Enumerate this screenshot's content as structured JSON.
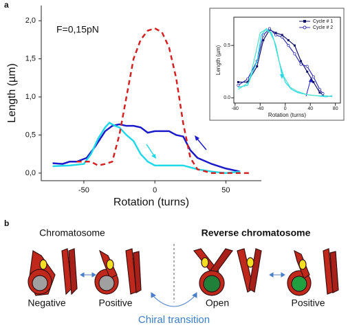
{
  "panel_labels": [
    "a",
    "b"
  ],
  "chart_data": [
    {
      "type": "line",
      "xlabel": "Rotation (turns)",
      "ylabel": "Length (µm)",
      "annotation": "F=0,15pN",
      "xlim": [
        -80,
        75
      ],
      "xticks": [
        -50,
        0,
        50
      ],
      "ylim": [
        -0.1,
        2.2
      ],
      "yticks": [
        {
          "value": 0,
          "label": "0,0"
        },
        {
          "value": 0.5,
          "label": "0,5"
        },
        {
          "value": 1,
          "label": "1,0"
        },
        {
          "value": 1.5,
          "label": "1,5"
        },
        {
          "value": 2,
          "label": "2,0"
        }
      ],
      "series": [
        {
          "color": "#1a1ac8",
          "style": "solid",
          "x": [
            -72,
            -65,
            -60,
            -55,
            -48,
            -42,
            -35,
            -30,
            -25,
            -20,
            -15,
            -10,
            -5,
            0,
            5,
            10,
            15,
            20,
            25,
            30,
            40,
            50,
            60
          ],
          "values": [
            0.13,
            0.12,
            0.15,
            0.15,
            0.2,
            0.35,
            0.55,
            0.62,
            0.64,
            0.62,
            0.62,
            0.6,
            0.53,
            0.55,
            0.55,
            0.55,
            0.5,
            0.48,
            0.3,
            0.2,
            0.12,
            0.06,
            0.02
          ]
        },
        {
          "color": "#20d8e8",
          "style": "solid",
          "x": [
            -72,
            -60,
            -50,
            -45,
            -40,
            -35,
            -32,
            -28,
            -25,
            -20,
            -15,
            -10,
            -5,
            0,
            10,
            20,
            30,
            40,
            50,
            60
          ],
          "values": [
            0.09,
            0.1,
            0.12,
            0.25,
            0.45,
            0.6,
            0.66,
            0.62,
            0.6,
            0.5,
            0.42,
            0.25,
            0.15,
            0.1,
            0.1,
            0.1,
            0.05,
            0.02,
            0,
            0.02
          ]
        },
        {
          "color": "#d42020",
          "style": "dashed",
          "x": [
            -55,
            -45,
            -40,
            -35,
            -30,
            -25,
            -20,
            -15,
            -10,
            -5,
            0,
            5,
            10,
            15,
            20,
            25,
            30,
            40,
            50,
            60,
            68
          ],
          "values": [
            0.15,
            0.15,
            0.1,
            0.12,
            0.15,
            0.5,
            1,
            1.5,
            1.75,
            1.87,
            1.9,
            1.85,
            1.65,
            1.25,
            0.65,
            0.2,
            0.05,
            0,
            0,
            0,
            0
          ]
        }
      ]
    },
    {
      "type": "line",
      "xlabel": "Rotation (turns)",
      "ylabel": "Length (µm)",
      "xlim": [
        -82,
        88
      ],
      "xticks": [
        -80,
        -40,
        0,
        40,
        80
      ],
      "ylim": [
        -0.05,
        0.77
      ],
      "yticks": [
        {
          "value": 0,
          "label": "0.0"
        },
        0.5
      ],
      "legend": "upper right",
      "series": [
        {
          "name": "Cycle # 1",
          "color": "#10106a",
          "style": "solid",
          "marker": "square",
          "x": [
            -75,
            -60,
            -45,
            -35,
            -25,
            -15,
            -5,
            5,
            15,
            25,
            35,
            45,
            55,
            60
          ],
          "values": [
            0.15,
            0.15,
            0.3,
            0.55,
            0.65,
            0.62,
            0.6,
            0.55,
            0.5,
            0.35,
            0.25,
            0.15,
            0.05,
            0.03
          ]
        },
        {
          "name": "Cycle # 2",
          "color": "#3030b0",
          "style": "solid",
          "marker": "circle-open",
          "x": [
            -75,
            -60,
            -45,
            -35,
            -25,
            -15,
            -5,
            5,
            15,
            25,
            35,
            45,
            55,
            60
          ],
          "values": [
            0.12,
            0.18,
            0.35,
            0.6,
            0.66,
            0.6,
            0.58,
            0.5,
            0.42,
            0.32,
            0.3,
            0.2,
            0.08,
            0.04
          ]
        },
        {
          "color": "#20d8e8",
          "style": "solid",
          "x": [
            -75,
            -60,
            -45,
            -38,
            -30,
            -22,
            -15,
            -8,
            0,
            10,
            20,
            35,
            50,
            65,
            75
          ],
          "values": [
            0.1,
            0.12,
            0.35,
            0.6,
            0.66,
            0.62,
            0.5,
            0.3,
            0.15,
            0.08,
            0.05,
            0.03,
            0.02,
            0.01,
            0.02
          ]
        },
        {
          "color": "#48e0d0",
          "style": "solid",
          "x": [
            -75,
            -58,
            -48,
            -40,
            -32,
            -25,
            -18,
            -10,
            -2,
            8,
            20,
            35,
            50,
            65,
            75
          ],
          "values": [
            0.08,
            0.15,
            0.4,
            0.62,
            0.65,
            0.63,
            0.55,
            0.35,
            0.2,
            0.1,
            0.06,
            0.03,
            0.02,
            0.02,
            0.01
          ]
        }
      ]
    }
  ],
  "diagram": {
    "left_title": "Chromatosome",
    "right_title": "Reverse chromatosome",
    "labels": [
      "Negative",
      "Positive",
      "Open",
      "Positive"
    ],
    "transition": "Chiral transition"
  }
}
